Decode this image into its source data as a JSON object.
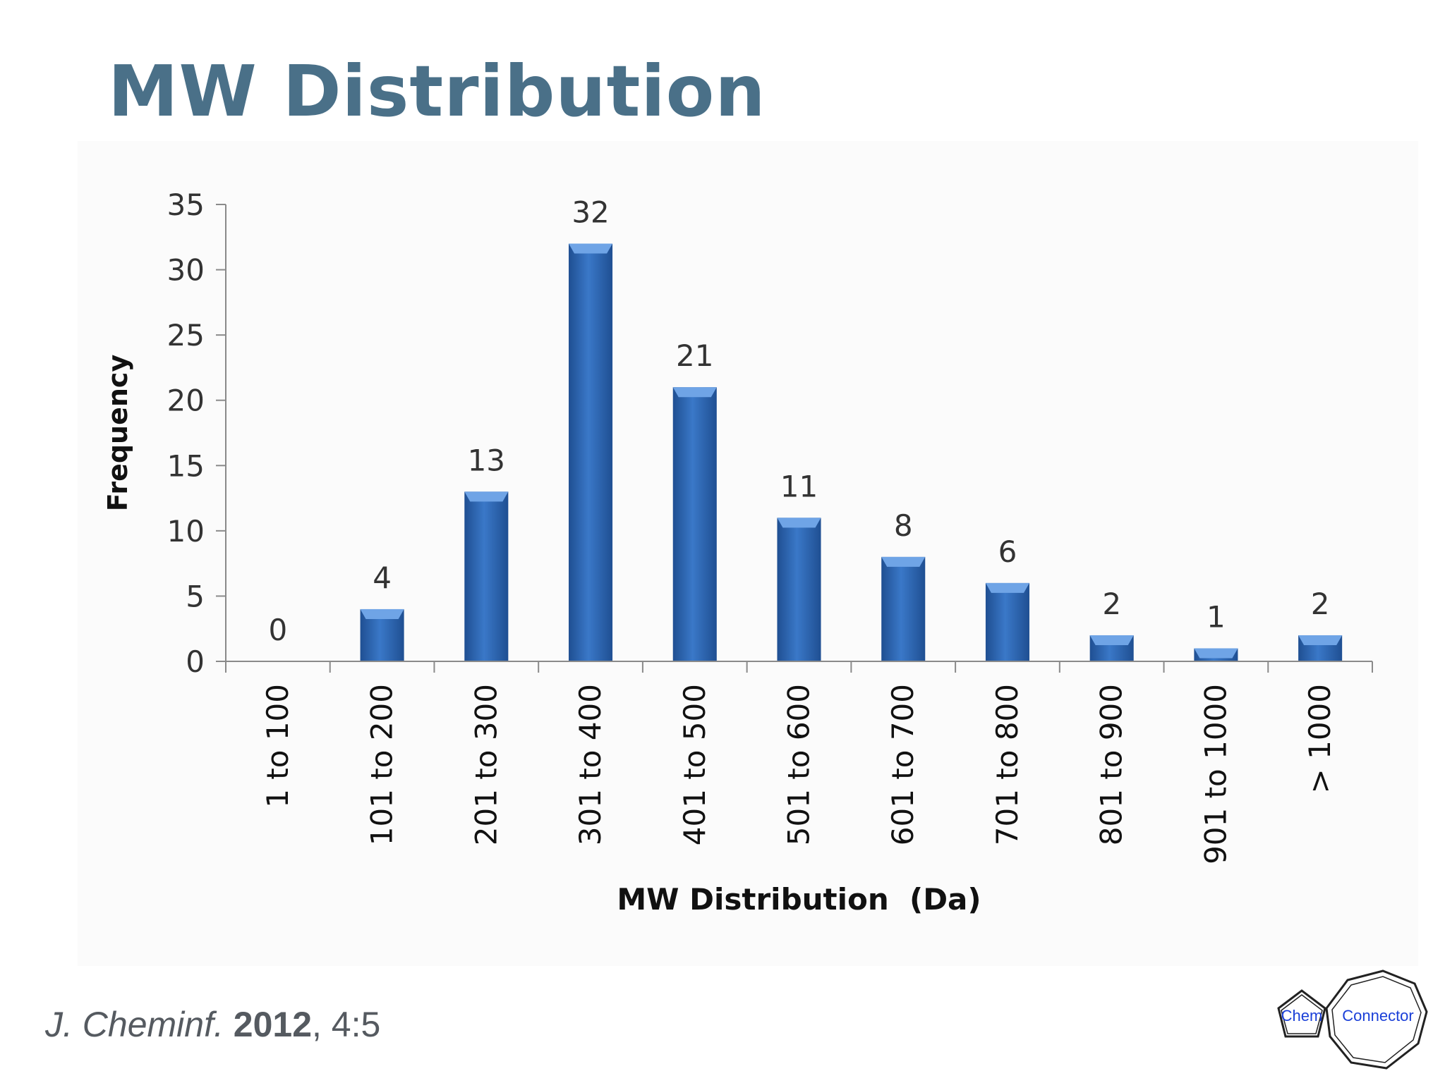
{
  "slide": {
    "title": "MW Distribution"
  },
  "citation": {
    "journal": "J. Cheminf.",
    "year": "2012",
    "rest": ", 4:5"
  },
  "logo": {
    "text_left": "Chem",
    "text_right": "Connector",
    "color": "#1a3fd8"
  },
  "chart_data": {
    "type": "bar",
    "categories": [
      "1 to 100",
      "101 to 200",
      "201 to 300",
      "301 to 400",
      "401 to 500",
      "501 to 600",
      "601 to 700",
      "701 to 800",
      "801 to 900",
      "901 to 1000",
      "> 1000"
    ],
    "values": [
      0,
      4,
      13,
      32,
      21,
      11,
      8,
      6,
      2,
      1,
      2
    ],
    "title": "",
    "xlabel": "MW Distribution  (Da)",
    "ylabel": "Frequency",
    "ylim": [
      0,
      35
    ],
    "yticks": [
      0,
      5,
      10,
      15,
      20,
      25,
      30,
      35
    ],
    "data_labels": true,
    "grid": false,
    "legend": "none",
    "bar_color": "#3a78c8",
    "bar_color_dark": "#1f4f92",
    "bar_color_light": "#6fa4e6"
  }
}
